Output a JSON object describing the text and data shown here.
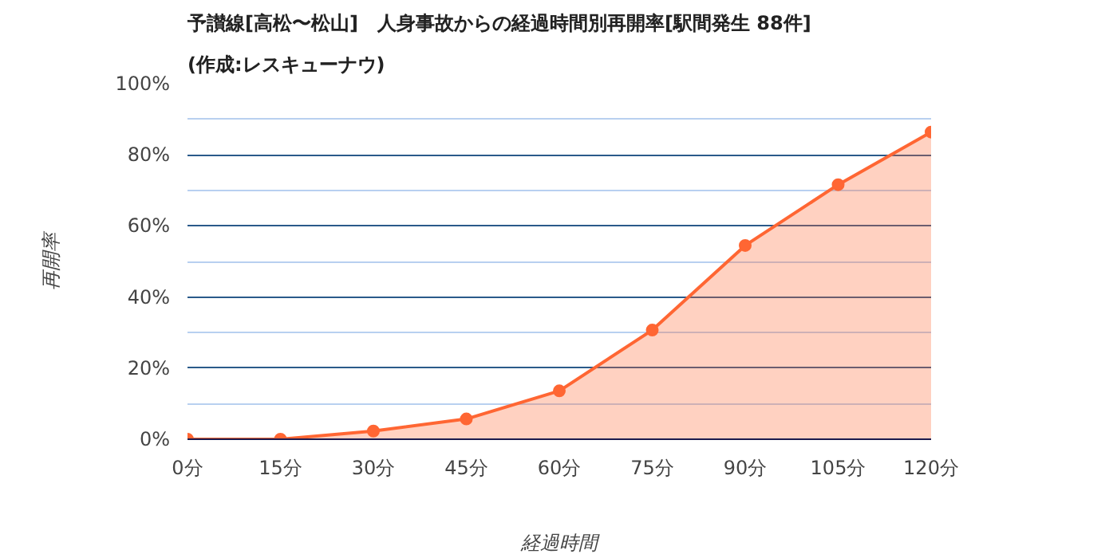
{
  "chart_data": {
    "type": "area",
    "title": "予讃線[高松〜松山]　人身事故からの経過時間別再開率[駅間発生 88件]",
    "subtitle": "(作成:レスキューナウ)",
    "xlabel": "経過時間",
    "ylabel": "再開率",
    "x": [
      0,
      15,
      30,
      45,
      60,
      75,
      90,
      105,
      120
    ],
    "series": [
      {
        "color": "#ff6633",
        "values": [
          0,
          0,
          2.3,
          5.7,
          13.6,
          30.7,
          54.5,
          71.6,
          86.4
        ]
      }
    ],
    "xlim": [
      0,
      120
    ],
    "xticks": [
      {
        "value": 0,
        "label": "0分"
      },
      {
        "value": 15,
        "label": "15分"
      },
      {
        "value": 30,
        "label": "30分"
      },
      {
        "value": 45,
        "label": "45分"
      },
      {
        "value": 60,
        "label": "60分"
      },
      {
        "value": 75,
        "label": "75分"
      },
      {
        "value": 90,
        "label": "90分"
      },
      {
        "value": 105,
        "label": "105分"
      },
      {
        "value": 120,
        "label": "120分"
      }
    ],
    "ylim": [
      0,
      100
    ],
    "yticks": [
      {
        "value": 0,
        "label": "0%"
      },
      {
        "value": 10,
        "label": null
      },
      {
        "value": 20,
        "label": "20%"
      },
      {
        "value": 30,
        "label": null
      },
      {
        "value": 40,
        "label": "40%"
      },
      {
        "value": 50,
        "label": null
      },
      {
        "value": 60,
        "label": "60%"
      },
      {
        "value": 70,
        "label": null
      },
      {
        "value": 80,
        "label": "80%"
      },
      {
        "value": 90,
        "label": null
      },
      {
        "value": 100,
        "label": "100%"
      }
    ],
    "grid": "y",
    "marker": "circle",
    "line_style": "solid"
  }
}
